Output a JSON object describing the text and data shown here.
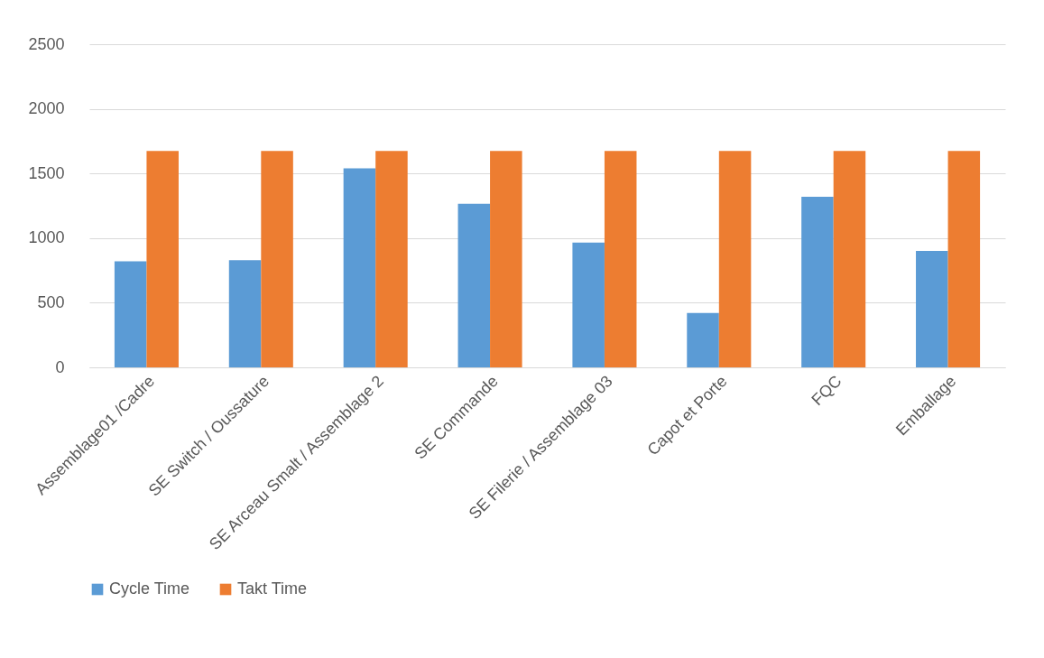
{
  "chart_data": {
    "type": "bar",
    "categories": [
      "Assemblage01 /Cadre",
      "SE Switch / Oussature",
      "SE Arceau Smalt / Assemblage 2",
      "SE Commande",
      "SE Filerie / Assemblage 03",
      "Capot et Porte",
      "FQC",
      "Emballage"
    ],
    "series": [
      {
        "name": "Cycle Time",
        "color": "#5b9bd5",
        "values": [
          820,
          830,
          1540,
          1265,
          965,
          420,
          1320,
          900
        ]
      },
      {
        "name": "Takt Time",
        "color": "#ed7d31",
        "values": [
          1675,
          1675,
          1675,
          1675,
          1675,
          1675,
          1675,
          1675
        ]
      }
    ],
    "ylim": [
      0,
      2500
    ],
    "yticks": [
      0,
      500,
      1000,
      1500,
      2000,
      2500
    ],
    "grid": "y",
    "legend": "bottom"
  }
}
